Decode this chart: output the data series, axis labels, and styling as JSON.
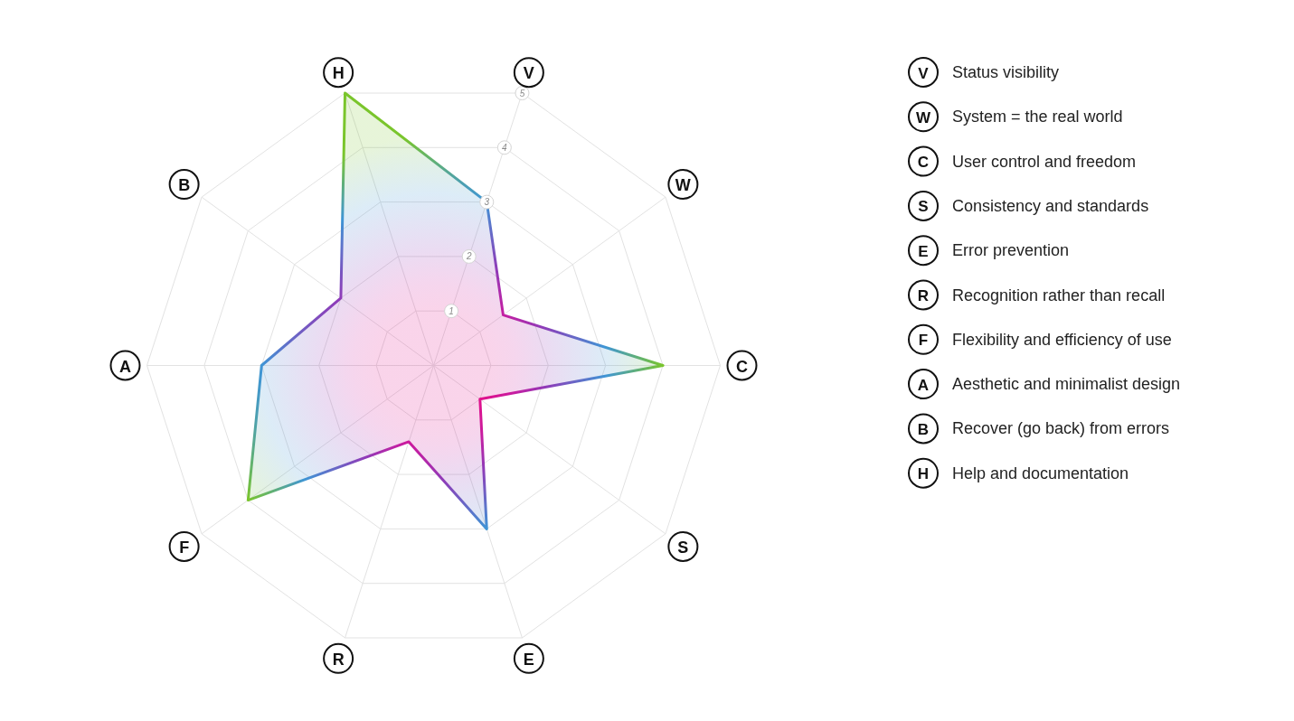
{
  "chart_data": {
    "type": "radar",
    "categories": [
      "V",
      "W",
      "C",
      "S",
      "E",
      "R",
      "F",
      "A",
      "B",
      "H"
    ],
    "series": [
      {
        "values": [
          3,
          1.5,
          4,
          1,
          3,
          1.4,
          4,
          3,
          2,
          5
        ],
        "colors": [
          "#3f95d5",
          "#c41ea2",
          "#7ac52c",
          "#e0118c",
          "#3f95d5",
          "#cc1a9c",
          "#7ac52c",
          "#3f95d5",
          "#8f3bb8",
          "#7ac52c"
        ]
      }
    ],
    "ylim": [
      0,
      5
    ],
    "yticks": [
      1,
      2,
      3,
      4,
      5
    ],
    "grid": true,
    "annotations": [
      "Status visibility",
      "System = the real world",
      "User control and freedom",
      "Consistency and standards",
      "Error prevention",
      "Recognition rather than recall",
      "Flexibility and efficiency of use",
      "Aesthetic and minimalist design",
      "Recover (go back) from errors",
      "Help and documentation"
    ]
  }
}
